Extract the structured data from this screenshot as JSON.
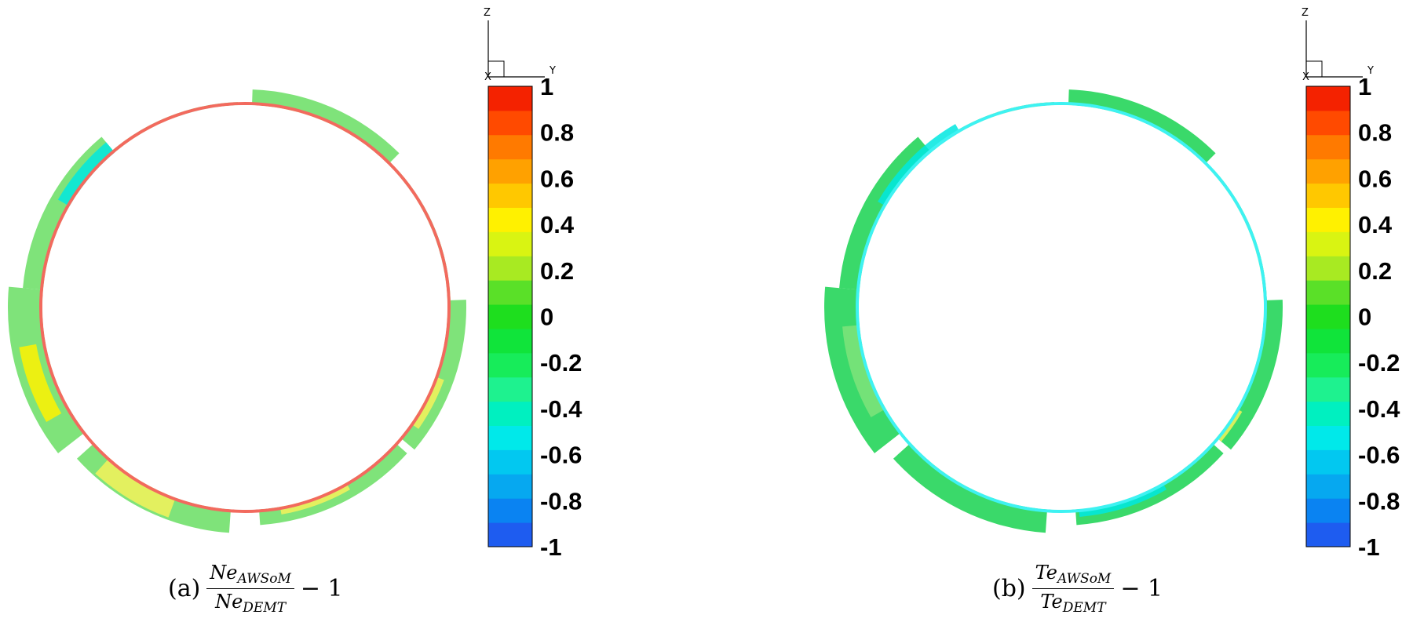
{
  "chart_data": [
    {
      "type": "heatmap",
      "panel_label": "(a)",
      "quantity_num": "Ne",
      "quantity_num_sub": "AWSoM",
      "quantity_den": "Ne",
      "quantity_den_sub": "DEMT",
      "suffix": "− 1",
      "axis_letters": {
        "z": "Z",
        "y": "Y",
        "x": "X"
      },
      "colorbar": {
        "range": [
          -1,
          1
        ],
        "tick_labels": [
          "1",
          "0.8",
          "0.6",
          "0.4",
          "0.2",
          "0",
          "-0.2",
          "-0.4",
          "-0.6",
          "-0.8",
          "-1"
        ],
        "colors": [
          "#1e5cf0",
          "#0a83f2",
          "#06a8f0",
          "#02c8f0",
          "#00e9ea",
          "#00f0c0",
          "#1ef28f",
          "#17ec5a",
          "#10e43a",
          "#1ede1e",
          "#5ae028",
          "#a8ea22",
          "#d9f412",
          "#fff100",
          "#ffc800",
          "#ffa100",
          "#ff7a00",
          "#ff4a00",
          "#f42200"
        ]
      },
      "map": {
        "base_color": "#7fe37a",
        "inner_rim_color": "#f26a5e",
        "patches": [
          "#f4f25a",
          "#00e8e0",
          "#3fd96a",
          "#fff200"
        ]
      }
    },
    {
      "type": "heatmap",
      "panel_label": "(b)",
      "quantity_num": "Te",
      "quantity_num_sub": "AWSoM",
      "quantity_den": "Te",
      "quantity_den_sub": "DEMT",
      "suffix": "− 1",
      "axis_letters": {
        "z": "Z",
        "y": "Y",
        "x": "X"
      },
      "colorbar": {
        "range": [
          -1,
          1
        ],
        "tick_labels": [
          "1",
          "0.8",
          "0.6",
          "0.4",
          "0.2",
          "0",
          "-0.2",
          "-0.4",
          "-0.6",
          "-0.8",
          "-1"
        ],
        "colors": [
          "#1e5cf0",
          "#0a83f2",
          "#06a8f0",
          "#02c8f0",
          "#00e9ea",
          "#00f0c0",
          "#1ef28f",
          "#17ec5a",
          "#10e43a",
          "#1ede1e",
          "#5ae028",
          "#a8ea22",
          "#d9f412",
          "#fff100",
          "#ffc800",
          "#ffa100",
          "#ff7a00",
          "#ff4a00",
          "#f42200"
        ]
      },
      "map": {
        "base_color": "#3ad96a",
        "inner_rim_color": "#3ef2f2",
        "patches": [
          "#f4f25a",
          "#00e8e0",
          "#ffd080",
          "#7fe37a"
        ]
      }
    }
  ]
}
